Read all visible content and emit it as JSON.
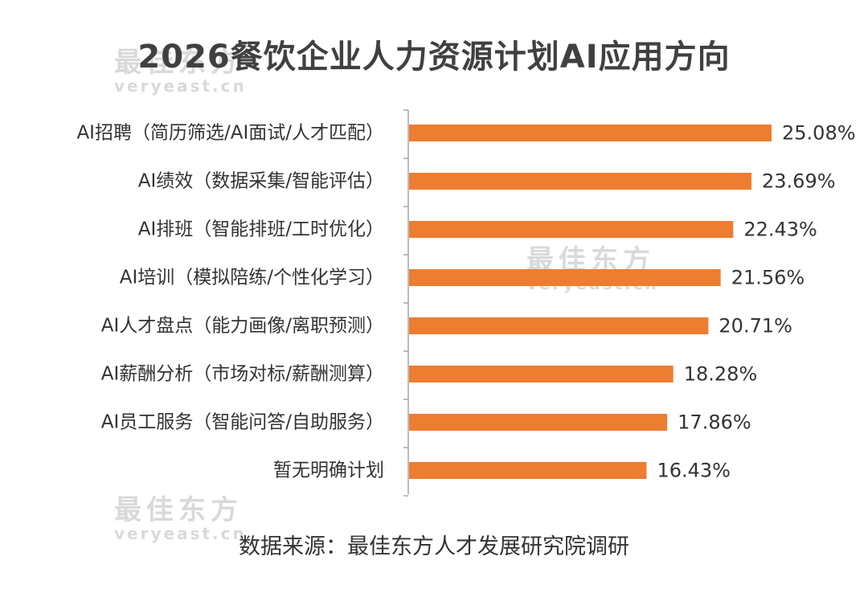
{
  "watermark": {
    "brand": "最佳东方",
    "site": "veryeast.cn"
  },
  "source_note": "数据来源：最佳东方人才发展研究院调研",
  "colors": {
    "bar": "#ED7D31",
    "axis": "#A6A6A6",
    "text": "#333333"
  },
  "chart_data": {
    "type": "bar",
    "orientation": "horizontal",
    "title": "2026餐饮企业人力资源计划AI应用方向",
    "categories": [
      "AI招聘（简历筛选/AI面试/人才匹配）",
      "AI绩效（数据采集/智能评估）",
      "AI排班（智能排班/工时优化）",
      "AI培训（模拟陪练/个性化学习）",
      "AI人才盘点（能力画像/离职预测）",
      "AI薪酬分析（市场对标/薪酬测算）",
      "AI员工服务（智能问答/自助服务）",
      "暂无明确计划"
    ],
    "values": [
      25.08,
      23.69,
      22.43,
      21.56,
      20.71,
      18.28,
      17.86,
      16.43
    ],
    "value_labels": [
      "25.08%",
      "23.69%",
      "22.43%",
      "21.56%",
      "20.71%",
      "18.28%",
      "17.86%",
      "16.43%"
    ],
    "xlim": [
      0,
      25.08
    ],
    "grid": false,
    "legend": "none"
  }
}
